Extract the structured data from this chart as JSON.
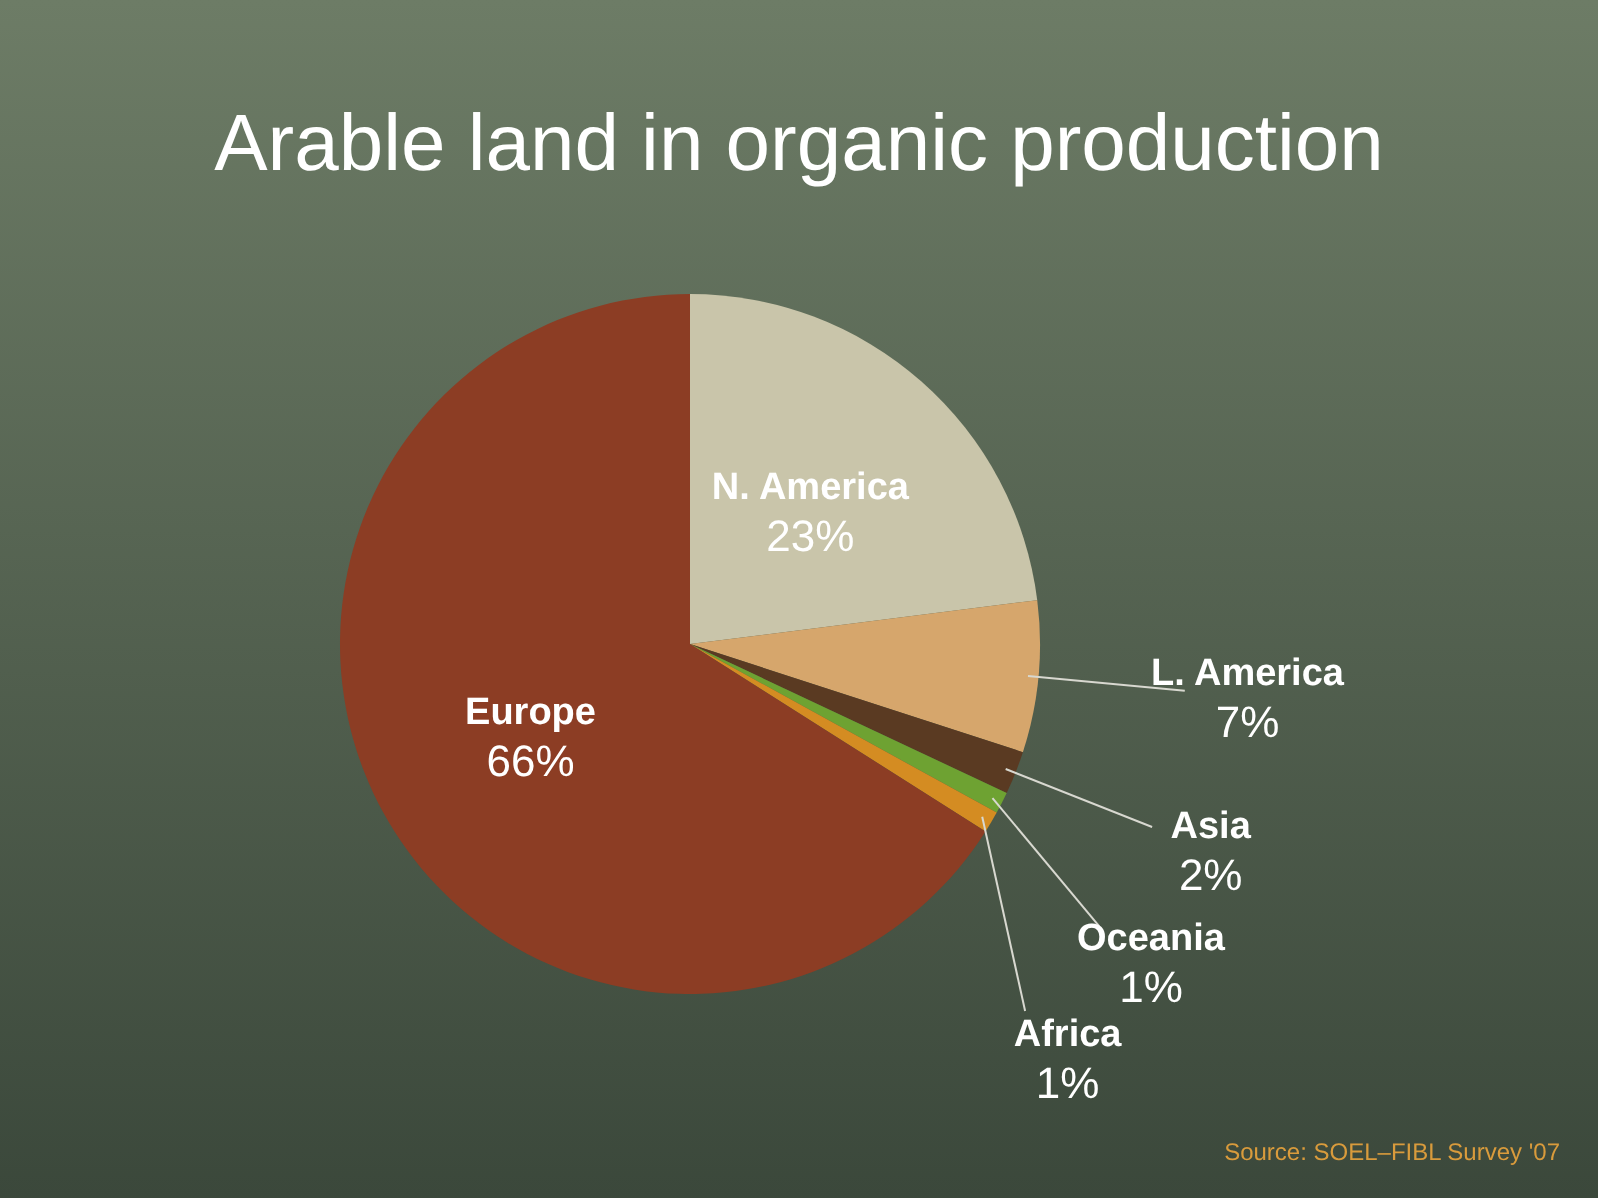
{
  "chart_data": {
    "type": "pie",
    "title": "Arable land in organic production",
    "categories": [
      "N. America",
      "L. America",
      "Asia",
      "Oceania",
      "Africa",
      "Europe"
    ],
    "values": [
      23,
      7,
      2,
      1,
      1,
      66
    ],
    "colors": [
      "#c9c5aa",
      "#d6a66c",
      "#5a3a22",
      "#6ea232",
      "#d48c22",
      "#8c3d24"
    ],
    "value_labels": [
      "23%",
      "7%",
      "2%",
      "1%",
      "1%",
      "66%"
    ],
    "annotations": [
      "Source: SOEL–FIBL Survey '07"
    ]
  }
}
